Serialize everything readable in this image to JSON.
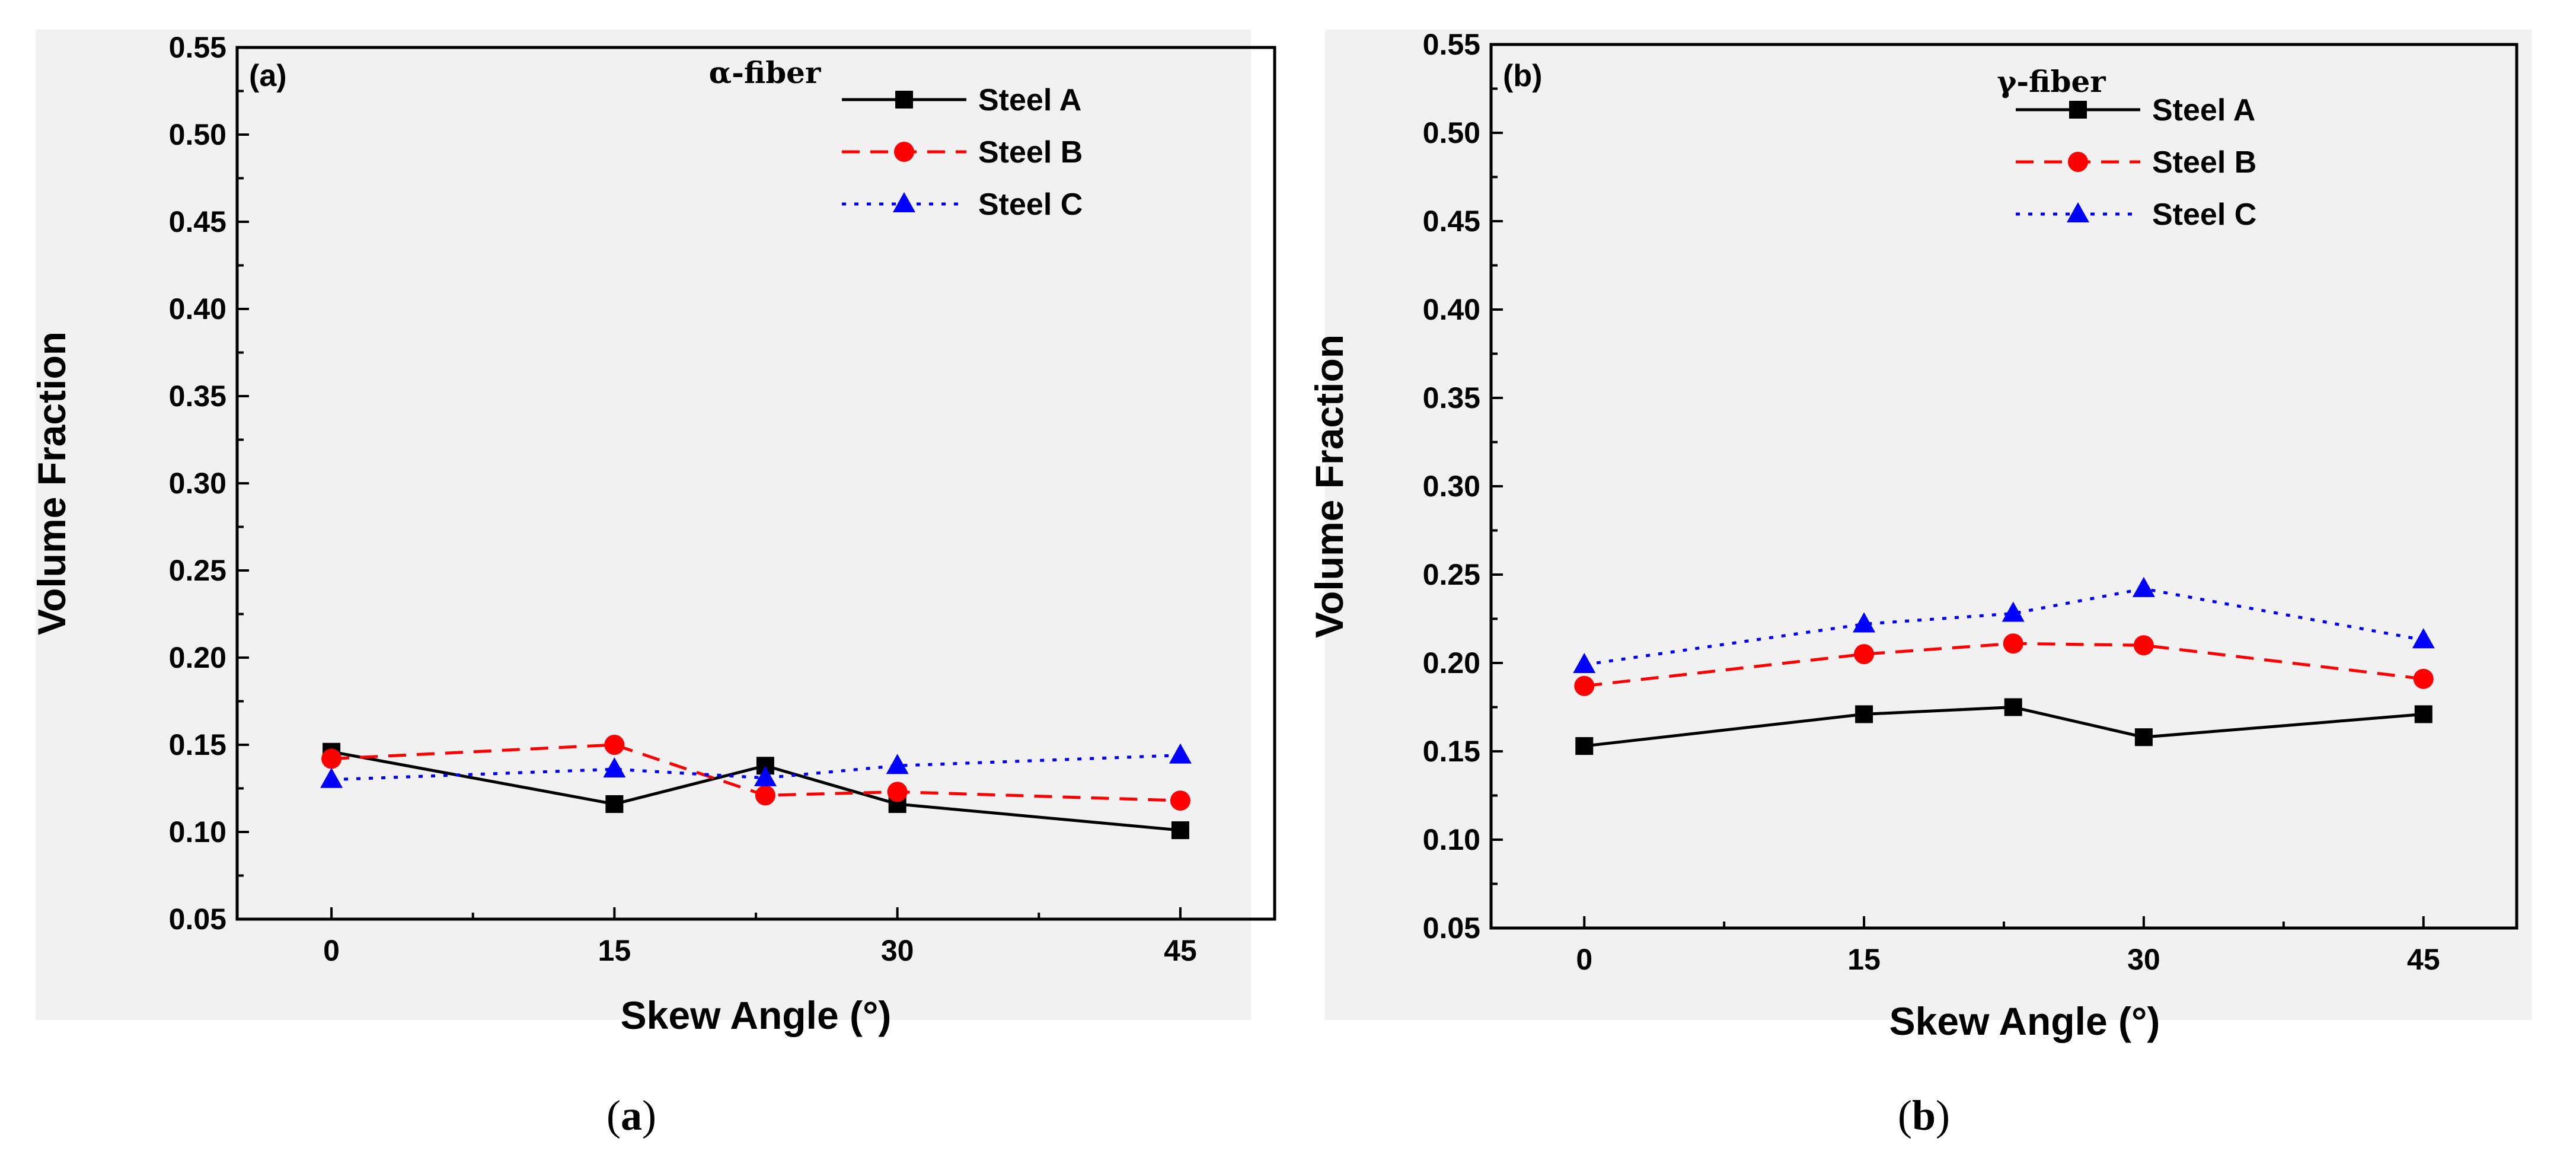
{
  "chart_data": [
    {
      "type": "line",
      "panel_tag": "(a)",
      "title": "α-fiber",
      "caption_letter": "a",
      "xlabel": "Skew Angle (°)",
      "ylabel": "Volume Fraction",
      "xlim": [
        -5,
        50
      ],
      "ylim": [
        0.05,
        0.55
      ],
      "xticks": [
        0,
        15,
        30,
        45
      ],
      "xtick_labels": [
        "0",
        "15",
        "30",
        "45"
      ],
      "yticks": [
        0.05,
        0.1,
        0.15,
        0.2,
        0.25,
        0.3,
        0.35,
        0.4,
        0.45,
        0.5,
        0.55
      ],
      "ytick_labels": [
        "0.05",
        "0.10",
        "0.15",
        "0.20",
        "0.25",
        "0.30",
        "0.35",
        "0.40",
        "0.45",
        "0.50",
        "0.55"
      ],
      "legend_position": "top-right",
      "x": [
        0,
        15,
        23,
        30,
        45
      ],
      "series": [
        {
          "name": "Steel A",
          "color": "#000000",
          "marker": "square",
          "dash": "solid",
          "values": [
            0.146,
            0.116,
            0.138,
            0.116,
            0.101
          ]
        },
        {
          "name": "Steel B",
          "color": "#ff0000",
          "marker": "circle",
          "dash": "dashed",
          "values": [
            0.142,
            0.15,
            0.121,
            0.123,
            0.118
          ]
        },
        {
          "name": "Steel C",
          "color": "#0000ff",
          "marker": "triangle",
          "dash": "dotted",
          "values": [
            0.13,
            0.136,
            0.131,
            0.138,
            0.144
          ]
        }
      ]
    },
    {
      "type": "line",
      "panel_tag": "(b)",
      "title": "γ-fiber",
      "caption_letter": "b",
      "xlabel": "Skew Angle (°)",
      "ylabel": "Volume Fraction",
      "xlim": [
        -5,
        50
      ],
      "ylim": [
        0.05,
        0.55
      ],
      "xticks": [
        0,
        15,
        30,
        45
      ],
      "xtick_labels": [
        "0",
        "15",
        "30",
        "45"
      ],
      "yticks": [
        0.05,
        0.1,
        0.15,
        0.2,
        0.25,
        0.3,
        0.35,
        0.4,
        0.45,
        0.5,
        0.55
      ],
      "ytick_labels": [
        "0.05",
        "0.10",
        "0.15",
        "0.20",
        "0.25",
        "0.30",
        "0.35",
        "0.40",
        "0.45",
        "0.50",
        "0.55"
      ],
      "legend_position": "top-right",
      "x": [
        0,
        15,
        23,
        30,
        45
      ],
      "series": [
        {
          "name": "Steel A",
          "color": "#000000",
          "marker": "square",
          "dash": "solid",
          "values": [
            0.153,
            0.171,
            0.175,
            0.158,
            0.171
          ]
        },
        {
          "name": "Steel B",
          "color": "#ff0000",
          "marker": "circle",
          "dash": "dashed",
          "values": [
            0.187,
            0.205,
            0.211,
            0.21,
            0.191
          ]
        },
        {
          "name": "Steel C",
          "color": "#0000ff",
          "marker": "triangle",
          "dash": "dotted",
          "values": [
            0.199,
            0.222,
            0.228,
            0.242,
            0.213
          ]
        }
      ]
    }
  ]
}
